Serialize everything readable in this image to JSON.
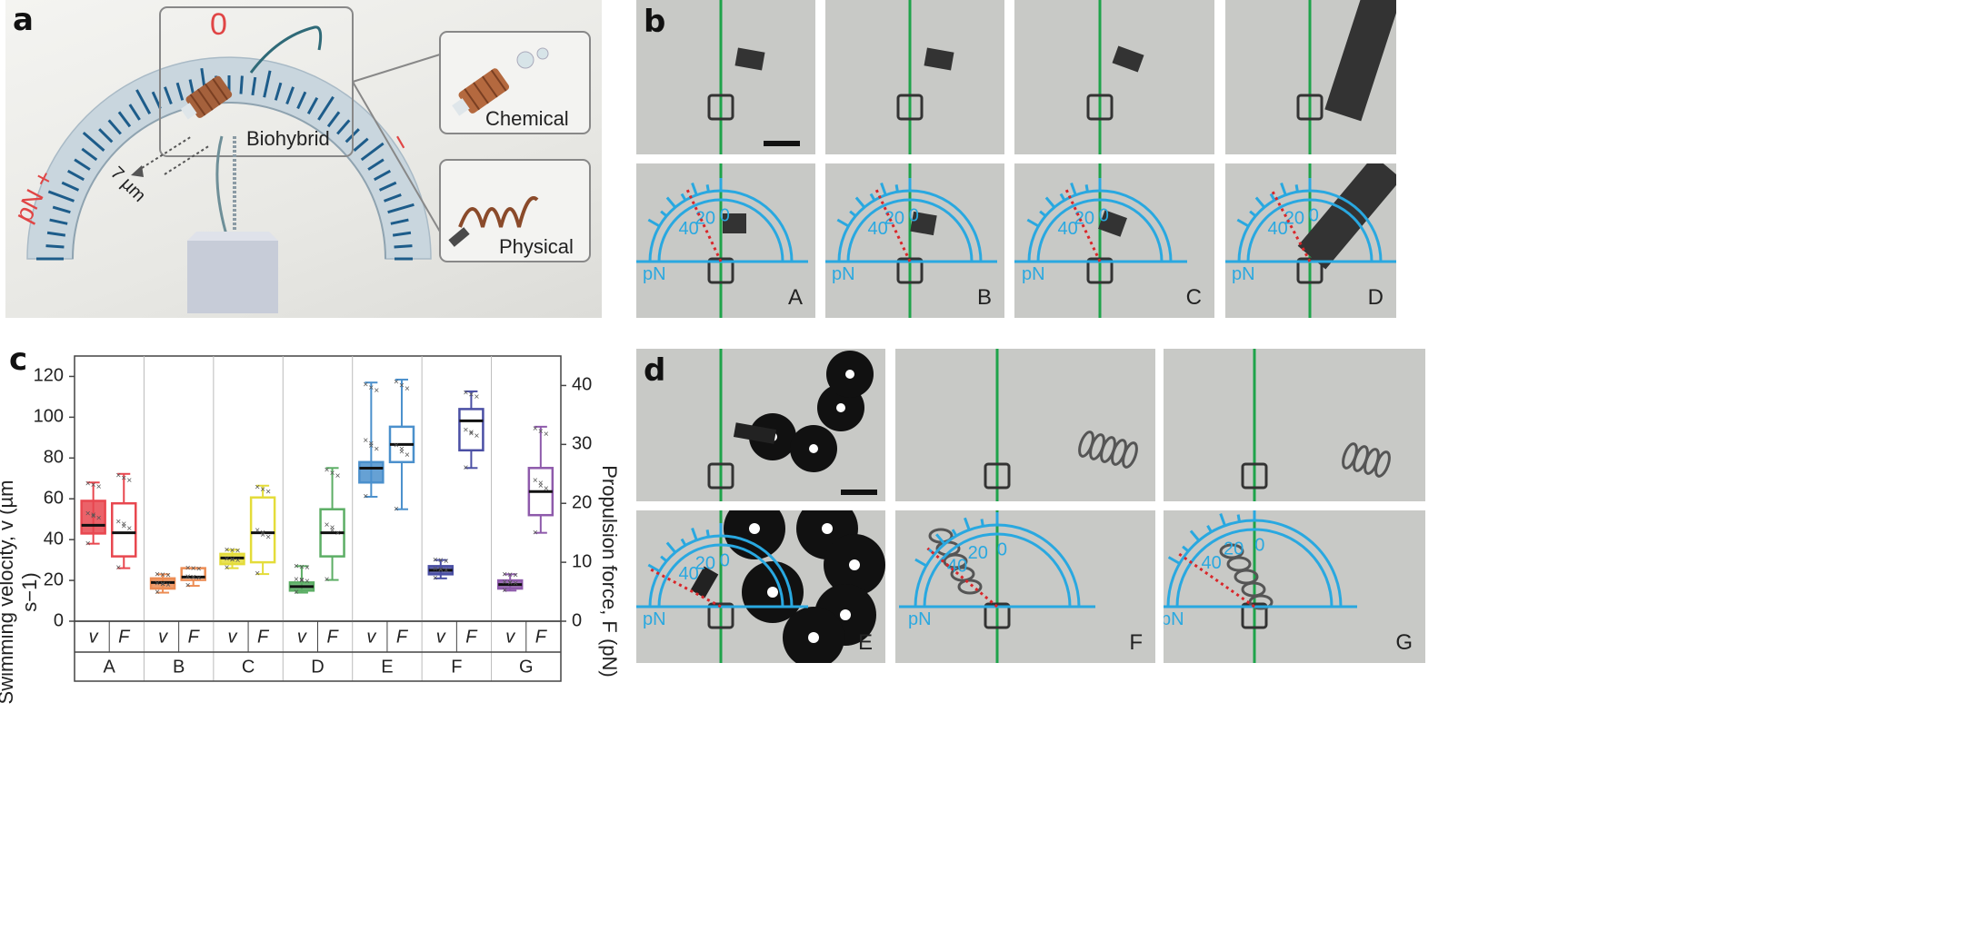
{
  "panel_a": {
    "letter": "a",
    "scale_zero": "0",
    "minus": "−",
    "pn_plus": "pN +",
    "label_biohybrid": "Biohybrid",
    "label_chemical": "Chemical",
    "label_physical": "Physical",
    "length_label": "7 µm"
  },
  "panel_b": {
    "letter": "b",
    "tiles": [
      "A",
      "B",
      "C",
      "D"
    ],
    "gauge": {
      "zero": "0",
      "twenty": "20",
      "forty": "40",
      "unit": "pN"
    }
  },
  "panel_c": {
    "letter": "c",
    "ylabel_left": "Swimming velocity, v (µm s−1)",
    "ylabel_right": "Propulsion force, F (pN)",
    "yticks_left": [
      "0",
      "20",
      "40",
      "60",
      "80",
      "100",
      "120"
    ],
    "yticks_right": [
      "0",
      "10",
      "20",
      "30",
      "40"
    ],
    "sub_v": "v",
    "sub_F": "F"
  },
  "panel_d": {
    "letter": "d",
    "tiles": [
      "E",
      "F",
      "G"
    ],
    "gauge": {
      "zero": "0",
      "twenty": "20",
      "forty": "40",
      "unit": "pN"
    }
  },
  "colors": {
    "A": "#e8474f",
    "B": "#ec8c54",
    "C": "#e4dc3a",
    "D": "#5cae65",
    "E": "#4b90cc",
    "F": "#4a4fa4",
    "G": "#8e5aab",
    "gauge": "#29a8e0",
    "green_line": "#1ea34a",
    "red_dots": "#d9262a"
  },
  "chart_data": {
    "type": "box",
    "categories": [
      "A",
      "B",
      "C",
      "D",
      "E",
      "F",
      "G"
    ],
    "ylim_left": [
      0,
      130
    ],
    "ylim_right": [
      0,
      45
    ],
    "series": [
      {
        "name": "v",
        "axis": "left",
        "box": [
          {
            "min": 38,
            "q1": 43,
            "median": 47,
            "q3": 59,
            "max": 68
          },
          {
            "min": 14,
            "q1": 16,
            "median": 19,
            "q3": 21,
            "max": 23
          },
          {
            "min": 26,
            "q1": 28,
            "median": 31,
            "q3": 33,
            "max": 35
          },
          {
            "min": 14,
            "q1": 15,
            "median": 17,
            "q3": 19,
            "max": 27
          },
          {
            "min": 61,
            "q1": 68,
            "median": 75,
            "q3": 78,
            "max": 117
          },
          {
            "min": 21,
            "q1": 23,
            "median": 25,
            "q3": 27,
            "max": 30
          },
          {
            "min": 15,
            "q1": 16,
            "median": 18,
            "q3": 20,
            "max": 23
          }
        ]
      },
      {
        "name": "F",
        "axis": "right",
        "box": [
          {
            "min": 9,
            "q1": 11,
            "median": 15,
            "q3": 20,
            "max": 25
          },
          {
            "min": 6,
            "q1": 7,
            "median": 7.5,
            "q3": 9,
            "max": 9
          },
          {
            "min": 8,
            "q1": 10,
            "median": 15,
            "q3": 21,
            "max": 23
          },
          {
            "min": 7,
            "q1": 11,
            "median": 15,
            "q3": 19,
            "max": 26
          },
          {
            "min": 19,
            "q1": 27,
            "median": 30,
            "q3": 33,
            "max": 41
          },
          {
            "min": 26,
            "q1": 29,
            "median": 34,
            "q3": 36,
            "max": 39
          },
          {
            "min": 15,
            "q1": 18,
            "median": 22,
            "q3": 26,
            "max": 33
          }
        ]
      }
    ]
  }
}
